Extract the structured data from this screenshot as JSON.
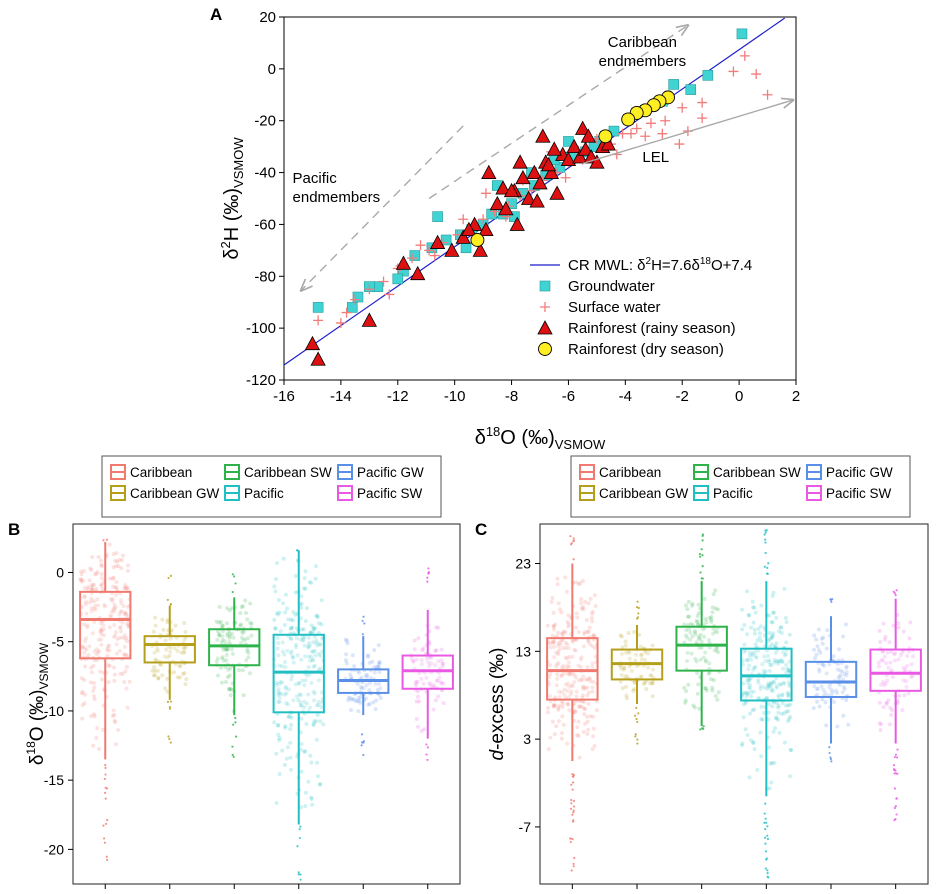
{
  "panel_labels": {
    "a": "A",
    "b": "B",
    "c": "C"
  },
  "colors": {
    "mwl_line": "#1f1fcc",
    "groundwater": "#3fd3d3",
    "surface_water": "#f27c7c",
    "rain_rainy": "#dd1111",
    "rain_dry": "#ffee22",
    "arrow_gray": "#a9a9a9",
    "caribbean": "#f07a70",
    "caribbean_gw": "#b59f1a",
    "caribbean_sw": "#2db34a",
    "pacific": "#20bfc4",
    "pacific_gw": "#5a8fe8",
    "pacific_sw": "#e959e3"
  },
  "chart_data": [
    {
      "id": "A",
      "type": "scatter",
      "title": "",
      "xlabel": {
        "main": "δ",
        "sup": "18",
        "rest": "O (‰)",
        "sub": "VSMOW"
      },
      "ylabel": {
        "main": "δ",
        "sup": "2",
        "rest": "H (‰)",
        "sub": "VSMOW"
      },
      "xlim": [
        -16,
        2
      ],
      "ylim": [
        -120,
        20
      ],
      "xticks": [
        -16,
        -14,
        -12,
        -10,
        -8,
        -6,
        -4,
        -2,
        0,
        2
      ],
      "yticks": [
        -120,
        -100,
        -80,
        -60,
        -40,
        -20,
        0,
        20
      ],
      "mwl": {
        "slope": 7.6,
        "intercept": 7.4,
        "x_range": [
          -16,
          1.6
        ]
      },
      "annotations": [
        {
          "lines": [
            "Caribbean",
            "endmembers"
          ],
          "x": -3.4,
          "y": 8.5,
          "anchor": "middle"
        },
        {
          "lines": [
            "Pacific",
            "endmembers"
          ],
          "x": -15.7,
          "y": -44,
          "anchor": "start"
        },
        {
          "lines": [
            "LEL"
          ],
          "x": -3.4,
          "y": -36,
          "anchor": "start"
        }
      ],
      "arrows": [
        {
          "name": "caribbean-arrow",
          "from": [
            -10.9,
            -50
          ],
          "to": [
            -1.8,
            16.8
          ],
          "dashed": true
        },
        {
          "name": "pacific-arrow",
          "from": [
            -9.7,
            -22
          ],
          "to": [
            -15.4,
            -85.5
          ],
          "dashed": true
        },
        {
          "name": "lel-arrow",
          "from": [
            -5.5,
            -36.5
          ],
          "to": [
            1.9,
            -12
          ],
          "dashed": false
        }
      ],
      "legend": {
        "position": "bottom-right",
        "items": [
          {
            "key": "mwl",
            "parts": [
              "CR MWL: δ",
              "2",
              "H=7.6δ",
              "18",
              "O+7.4"
            ]
          },
          {
            "key": "groundwater",
            "parts": [
              "Groundwater"
            ]
          },
          {
            "key": "surface_water",
            "parts": [
              "Surface water"
            ]
          },
          {
            "key": "rain_rainy",
            "parts": [
              "Rainforest (rainy season)"
            ]
          },
          {
            "key": "rain_dry",
            "parts": [
              "Rainforest (dry season)"
            ]
          }
        ]
      },
      "series": {
        "groundwater": [
          [
            0.1,
            13.5
          ],
          [
            -1.1,
            -2.5
          ],
          [
            -1.7,
            -8
          ],
          [
            -2.7,
            -12.5
          ],
          [
            -3.3,
            -16
          ],
          [
            -3.9,
            -19.5
          ],
          [
            -4.4,
            -24
          ],
          [
            -4.9,
            -28
          ],
          [
            -5.4,
            -32
          ],
          [
            -5.9,
            -34
          ],
          [
            -6.3,
            -38
          ],
          [
            -6.8,
            -41
          ],
          [
            -7.2,
            -45
          ],
          [
            -7.6,
            -48
          ],
          [
            -8.0,
            -52
          ],
          [
            -8.3,
            -56
          ],
          [
            -8.7,
            -56
          ],
          [
            -9.0,
            -60
          ],
          [
            -9.4,
            -62
          ],
          [
            -9.8,
            -64
          ],
          [
            -10.3,
            -66
          ],
          [
            -10.8,
            -69
          ],
          [
            -11.4,
            -72
          ],
          [
            -11.8,
            -78
          ],
          [
            -12.0,
            -81
          ],
          [
            -12.7,
            -84
          ],
          [
            -13.0,
            -84
          ],
          [
            -13.4,
            -88
          ],
          [
            -13.6,
            -92
          ],
          [
            -14.8,
            -92
          ],
          [
            -8.5,
            -45
          ],
          [
            -7.3,
            -40
          ],
          [
            -6.5,
            -35
          ],
          [
            -4.7,
            -26
          ],
          [
            -3.6,
            -17
          ],
          [
            -5.1,
            -30
          ],
          [
            -7.9,
            -57
          ],
          [
            -10.6,
            -57
          ],
          [
            -9.6,
            -69
          ],
          [
            -6.0,
            -28
          ],
          [
            -2.3,
            -6
          ]
        ],
        "surface_water": [
          [
            -0.2,
            -1
          ],
          [
            0.2,
            5
          ],
          [
            0.6,
            -2
          ],
          [
            1.0,
            -10
          ],
          [
            -1.3,
            -13
          ],
          [
            -2.0,
            -15
          ],
          [
            -2.6,
            -20
          ],
          [
            -3.6,
            -23
          ],
          [
            -3.8,
            -25
          ],
          [
            -4.1,
            -25
          ],
          [
            -4.5,
            -29
          ],
          [
            -3.1,
            -21
          ],
          [
            -2.1,
            -29
          ],
          [
            -1.3,
            -19
          ],
          [
            -1.8,
            -24
          ],
          [
            -2.7,
            -25
          ],
          [
            -5.0,
            -27
          ],
          [
            -5.5,
            -35
          ],
          [
            -6.0,
            -36
          ],
          [
            -6.4,
            -40
          ],
          [
            -6.9,
            -43
          ],
          [
            -7.3,
            -47
          ],
          [
            -7.7,
            -49
          ],
          [
            -8.1,
            -53
          ],
          [
            -8.6,
            -55
          ],
          [
            -9.0,
            -58
          ],
          [
            -9.5,
            -62
          ],
          [
            -9.9,
            -64
          ],
          [
            -10.4,
            -67
          ],
          [
            -10.9,
            -70
          ],
          [
            -11.5,
            -73
          ],
          [
            -12.0,
            -77
          ],
          [
            -12.5,
            -82
          ],
          [
            -13.0,
            -85
          ],
          [
            -13.5,
            -89
          ],
          [
            -13.8,
            -94
          ],
          [
            -14.0,
            -98
          ],
          [
            -14.8,
            -97
          ],
          [
            -11.2,
            -68
          ],
          [
            -12.3,
            -87
          ],
          [
            -5.8,
            -30
          ],
          [
            -6.6,
            -32
          ],
          [
            -7.6,
            -43
          ],
          [
            -8.9,
            -48
          ],
          [
            -3.0,
            -14
          ],
          [
            -2.5,
            -11
          ],
          [
            -3.3,
            -26
          ],
          [
            -4.3,
            -33
          ],
          [
            -6.1,
            -42
          ],
          [
            -8.2,
            -57
          ],
          [
            -9.7,
            -58
          ],
          [
            -10.7,
            -72
          ],
          [
            -11.9,
            -76
          ]
        ],
        "rain_rainy": [
          [
            -15.0,
            -106
          ],
          [
            -14.8,
            -112
          ],
          [
            -13.0,
            -97
          ],
          [
            -11.8,
            -75
          ],
          [
            -11.3,
            -79
          ],
          [
            -10.6,
            -67
          ],
          [
            -10.1,
            -70
          ],
          [
            -9.7,
            -65
          ],
          [
            -9.3,
            -60
          ],
          [
            -9.1,
            -70
          ],
          [
            -8.9,
            -62
          ],
          [
            -8.5,
            -52
          ],
          [
            -8.3,
            -46
          ],
          [
            -8.2,
            -54
          ],
          [
            -7.9,
            -47
          ],
          [
            -7.6,
            -42
          ],
          [
            -7.4,
            -50
          ],
          [
            -7.2,
            -40
          ],
          [
            -7.0,
            -44
          ],
          [
            -6.8,
            -36
          ],
          [
            -6.6,
            -40
          ],
          [
            -6.4,
            -48
          ],
          [
            -6.2,
            -33
          ],
          [
            -6.0,
            -35
          ],
          [
            -5.8,
            -30
          ],
          [
            -5.6,
            -34
          ],
          [
            -5.4,
            -31
          ],
          [
            -5.2,
            -34
          ],
          [
            -5.0,
            -36
          ],
          [
            -4.8,
            -30
          ],
          [
            -4.6,
            -29
          ],
          [
            -5.5,
            -23
          ],
          [
            -6.9,
            -26
          ],
          [
            -7.7,
            -36
          ],
          [
            -8.8,
            -40
          ],
          [
            -6.5,
            -31
          ],
          [
            -5.3,
            -26
          ],
          [
            -7.1,
            -51
          ],
          [
            -6.7,
            -37
          ],
          [
            -7.8,
            -60
          ],
          [
            -9.5,
            -62
          ],
          [
            -8.0,
            -47
          ]
        ],
        "rain_dry": [
          [
            -2.5,
            -11
          ],
          [
            -2.8,
            -12.5
          ],
          [
            -3.0,
            -14
          ],
          [
            -3.3,
            -16
          ],
          [
            -3.6,
            -17
          ],
          [
            -3.9,
            -19.5
          ],
          [
            -4.7,
            -26
          ],
          [
            -9.2,
            -66
          ]
        ]
      }
    },
    {
      "id": "B",
      "type": "box",
      "ylabel": {
        "main": "δ",
        "sup": "18",
        "rest": "O (‰)",
        "sub": "VSMOW"
      },
      "ylim": [
        -22.5,
        3.5
      ],
      "yticks": [
        -20,
        -15,
        -10,
        -5,
        0
      ],
      "legend": {
        "position": "top",
        "rows": [
          [
            "Caribbean",
            "Caribbean SW",
            "Pacific GW"
          ],
          [
            "Caribbean GW",
            "Pacific",
            "Pacific SW"
          ]
        ]
      },
      "groups": [
        {
          "name": "Caribbean",
          "color_key": "caribbean",
          "min": -13.5,
          "q1": -6.2,
          "median": -3.4,
          "q3": -1.4,
          "max": 2.2,
          "jitter": 0.7,
          "out_low": -21,
          "out_high": 2.4,
          "n": 260
        },
        {
          "name": "Caribbean GW",
          "color_key": "caribbean_gw",
          "min": -9.2,
          "q1": -6.5,
          "median": -5.2,
          "q3": -4.6,
          "max": -2.4,
          "jitter": 0.5,
          "out_low": -12.6,
          "out_high": 0,
          "n": 80
        },
        {
          "name": "Caribbean SW",
          "color_key": "caribbean_sw",
          "min": -10.3,
          "q1": -6.7,
          "median": -5.3,
          "q3": -4.1,
          "max": -1.8,
          "jitter": 0.5,
          "out_low": -13.8,
          "out_high": 0.3,
          "n": 110
        },
        {
          "name": "Pacific",
          "color_key": "pacific",
          "min": -18.2,
          "q1": -10.1,
          "median": -7.2,
          "q3": -4.5,
          "max": 1.6,
          "jitter": 0.7,
          "out_low": -22.4,
          "out_high": 1.6,
          "n": 260
        },
        {
          "name": "Pacific GW",
          "color_key": "pacific_gw",
          "min": -10.3,
          "q1": -8.7,
          "median": -7.8,
          "q3": -7.0,
          "max": -4.6,
          "jitter": 0.5,
          "out_low": -13.2,
          "out_high": -2.8,
          "n": 90
        },
        {
          "name": "Pacific SW",
          "color_key": "pacific_sw",
          "min": -12.0,
          "q1": -8.4,
          "median": -7.1,
          "q3": -6.0,
          "max": -2.7,
          "jitter": 0.5,
          "out_low": -13.6,
          "out_high": 0.4,
          "n": 80
        }
      ]
    },
    {
      "id": "C",
      "type": "box",
      "ylabel": {
        "main": "",
        "italic": "d",
        "rest": "-excess (‰)"
      },
      "ylim": [
        -13.5,
        27.5
      ],
      "yticks": [
        -7,
        3,
        13,
        23
      ],
      "legend": {
        "position": "top",
        "rows": [
          [
            "Caribbean",
            "Caribbean SW",
            "Pacific GW"
          ],
          [
            "Caribbean GW",
            "Pacific",
            "Pacific SW"
          ]
        ]
      },
      "groups": [
        {
          "name": "Caribbean",
          "color_key": "caribbean",
          "min": 0.5,
          "q1": 7.5,
          "median": 10.8,
          "q3": 14.5,
          "max": 23.0,
          "jitter": 0.7,
          "out_low": -12,
          "out_high": 26.5,
          "n": 260
        },
        {
          "name": "Caribbean GW",
          "color_key": "caribbean_gw",
          "min": 7.0,
          "q1": 9.8,
          "median": 11.6,
          "q3": 13.2,
          "max": 16.0,
          "jitter": 0.5,
          "out_low": 2.3,
          "out_high": 19,
          "n": 80
        },
        {
          "name": "Caribbean SW",
          "color_key": "caribbean_sw",
          "min": 4.5,
          "q1": 10.8,
          "median": 13.7,
          "q3": 15.8,
          "max": 21.0,
          "jitter": 0.5,
          "out_low": 3.5,
          "out_high": 26.5,
          "n": 110
        },
        {
          "name": "Pacific",
          "color_key": "pacific",
          "min": -3.5,
          "q1": 7.4,
          "median": 10.2,
          "q3": 13.3,
          "max": 21.0,
          "jitter": 0.7,
          "out_low": -13,
          "out_high": 27,
          "n": 260
        },
        {
          "name": "Pacific GW",
          "color_key": "pacific_gw",
          "min": 2.5,
          "q1": 7.8,
          "median": 9.5,
          "q3": 11.8,
          "max": 17.0,
          "jitter": 0.5,
          "out_low": 0,
          "out_high": 19,
          "n": 90
        },
        {
          "name": "Pacific SW",
          "color_key": "pacific_sw",
          "min": 2.5,
          "q1": 8.5,
          "median": 10.5,
          "q3": 13.2,
          "max": 19.0,
          "jitter": 0.5,
          "out_low": -7,
          "out_high": 21,
          "n": 80
        }
      ]
    }
  ]
}
